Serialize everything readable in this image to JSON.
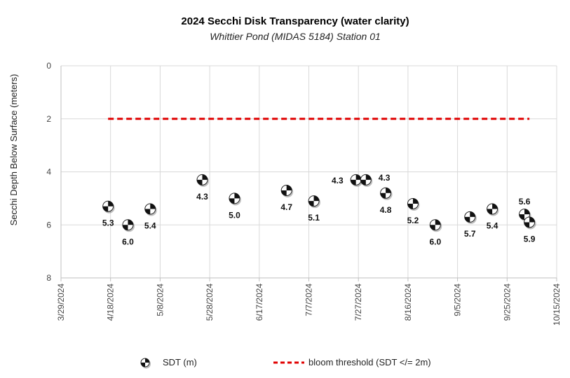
{
  "chart_data": {
    "type": "scatter",
    "title": "2024 Secchi Disk Transparency (water clarity)",
    "subtitle": "Whittier Pond (MIDAS 5184) Station 01",
    "ylabel": "Secchi Depth Below Surface (meters)",
    "xlabel": "",
    "ylim": [
      0,
      8
    ],
    "y_inverted": true,
    "y_ticks": [
      "0",
      "2",
      "4",
      "6",
      "8"
    ],
    "x_ticks": [
      "3/29/2024",
      "4/18/2024",
      "5/8/2024",
      "5/28/2024",
      "6/17/2024",
      "7/7/2024",
      "7/27/2024",
      "8/16/2024",
      "9/5/2024",
      "9/25/2024",
      "10/15/2024"
    ],
    "xlim": [
      "2024-03-29",
      "2024-10-15"
    ],
    "grid": true,
    "legend_placement": "bottom",
    "series": [
      {
        "name": "SDT (m)",
        "marker": "checkered-circle",
        "points": [
          {
            "x": "2024-04-17",
            "y": 5.3,
            "label": "5.3"
          },
          {
            "x": "2024-04-25",
            "y": 6.0,
            "label": "6.0"
          },
          {
            "x": "2024-05-04",
            "y": 5.4,
            "label": "5.4"
          },
          {
            "x": "2024-05-25",
            "y": 4.3,
            "label": "4.3"
          },
          {
            "x": "2024-06-07",
            "y": 5.0,
            "label": "5.0"
          },
          {
            "x": "2024-06-28",
            "y": 4.7,
            "label": "4.7"
          },
          {
            "x": "2024-07-09",
            "y": 5.1,
            "label": "5.1"
          },
          {
            "x": "2024-07-26",
            "y": 4.3,
            "label": "4.3"
          },
          {
            "x": "2024-07-30",
            "y": 4.3,
            "label": "4.3"
          },
          {
            "x": "2024-08-07",
            "y": 4.8,
            "label": "4.8"
          },
          {
            "x": "2024-08-18",
            "y": 5.2,
            "label": "5.2"
          },
          {
            "x": "2024-08-27",
            "y": 6.0,
            "label": "6.0"
          },
          {
            "x": "2024-09-10",
            "y": 5.7,
            "label": "5.7"
          },
          {
            "x": "2024-09-19",
            "y": 5.4,
            "label": "5.4"
          },
          {
            "x": "2024-10-02",
            "y": 5.6,
            "label": "5.6"
          },
          {
            "x": "2024-10-04",
            "y": 5.9,
            "label": "5.9"
          }
        ]
      },
      {
        "name": "bloom threshold (SDT </= 2m)",
        "type": "line",
        "style": "dashed",
        "color": "#e00000",
        "points": [
          {
            "x": "2024-04-17",
            "y": 2
          },
          {
            "x": "2024-10-04",
            "y": 2
          }
        ]
      }
    ]
  }
}
